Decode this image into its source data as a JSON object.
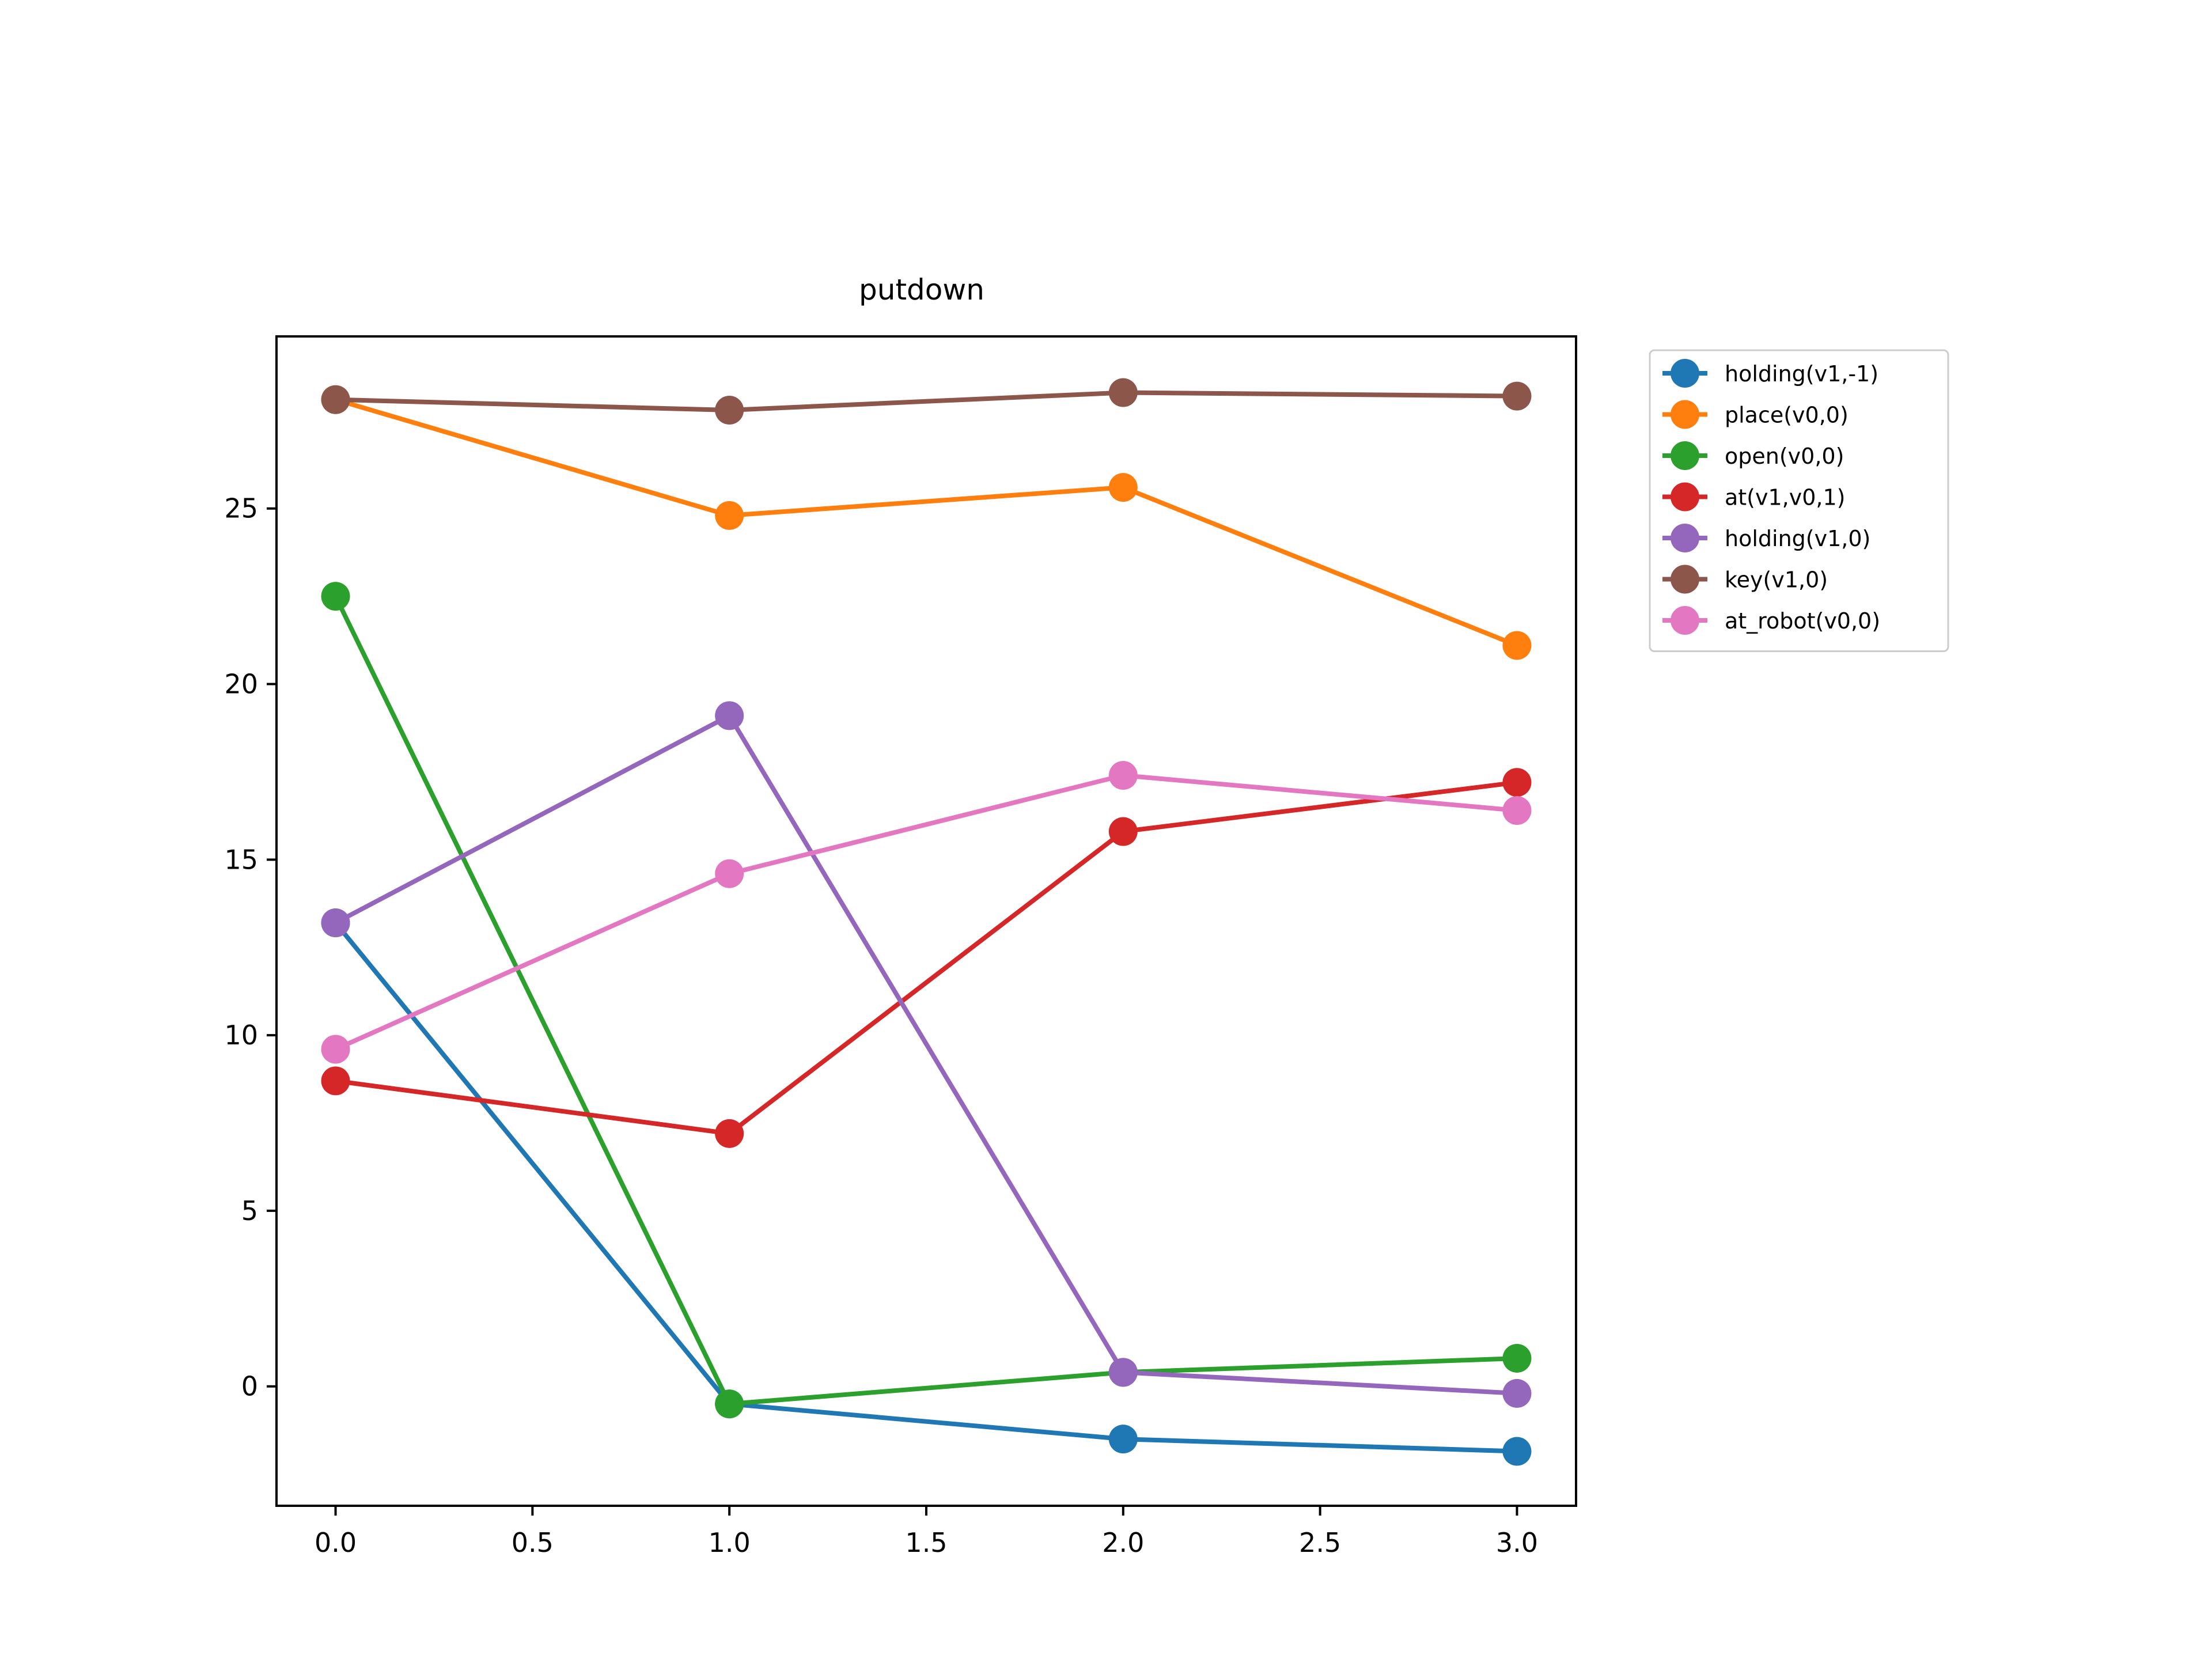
{
  "chart_data": {
    "type": "line",
    "title": "putdown",
    "xlabel": "",
    "ylabel": "",
    "x": [
      0,
      1,
      2,
      3
    ],
    "xlim": [
      -0.15,
      3.15
    ],
    "ylim": [
      -3.4,
      29.9
    ],
    "x_ticks": [
      0.0,
      0.5,
      1.0,
      1.5,
      2.0,
      2.5,
      3.0
    ],
    "x_tick_labels": [
      "0.0",
      "0.5",
      "1.0",
      "1.5",
      "2.0",
      "2.5",
      "3.0"
    ],
    "y_ticks": [
      0,
      5,
      10,
      15,
      20,
      25
    ],
    "y_tick_labels": [
      "0",
      "5",
      "10",
      "15",
      "20",
      "25"
    ],
    "grid": false,
    "legend_placement": "outside-upper-right",
    "series": [
      {
        "name": "holding(v1,-1)",
        "color": "#1f77b4",
        "values": [
          13.2,
          -0.5,
          -1.5,
          -1.85
        ]
      },
      {
        "name": "place(v0,0)",
        "color": "#ff7f0e",
        "values": [
          28.1,
          24.8,
          25.6,
          21.1
        ]
      },
      {
        "name": "open(v0,0)",
        "color": "#2ca02c",
        "values": [
          22.5,
          -0.5,
          0.4,
          0.8
        ]
      },
      {
        "name": "at(v1,v0,1)",
        "color": "#d62728",
        "values": [
          8.7,
          7.2,
          15.8,
          17.2
        ]
      },
      {
        "name": "holding(v1,0)",
        "color": "#9467bd",
        "values": [
          13.2,
          19.1,
          0.4,
          -0.2
        ]
      },
      {
        "name": "key(v1,0)",
        "color": "#8c564b",
        "values": [
          28.1,
          27.8,
          28.3,
          28.2
        ]
      },
      {
        "name": "at_robot(v0,0)",
        "color": "#e377c2",
        "values": [
          9.6,
          14.6,
          17.4,
          16.4
        ]
      }
    ]
  }
}
